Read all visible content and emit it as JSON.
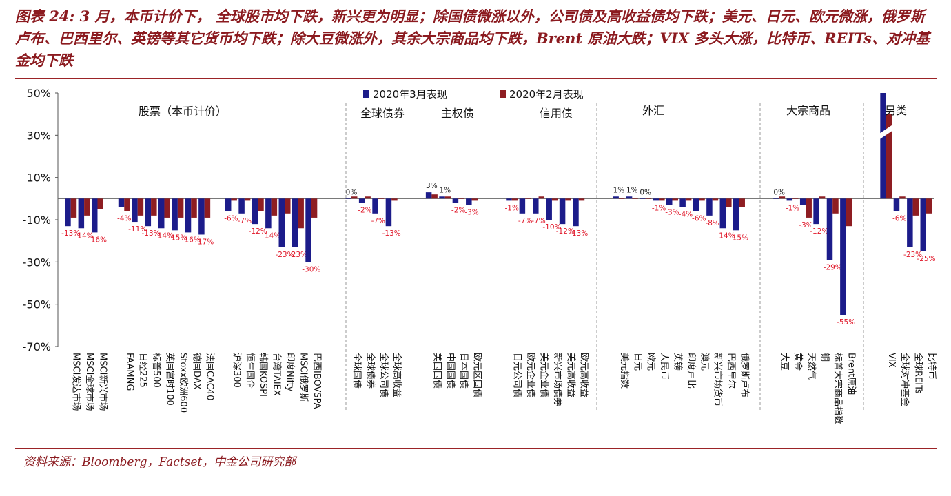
{
  "page": {
    "title": "图表 24: 3 月，本币计价下，  全球股市均下跌，新兴更为明显；除国债微涨以外，公司债及高收益债均下跌；美元、日元、欧元微涨，俄罗斯卢布、巴西里尔、英镑等其它货币均下跌；除大豆微涨外，其余大宗商品均下跌，Brent 原油大跌；VIX 多头大涨，比特币、REITs、对冲基金均下跌",
    "source": "资料来源：Bloomberg，Factset，中金公司研究部"
  },
  "colors": {
    "march": "#1c1c8a",
    "feb": "#8e1d22",
    "label": "#e0182a",
    "title": "#8b1a1f"
  },
  "chart_data": {
    "type": "bar",
    "ylim": [
      -70,
      50
    ],
    "yticks": [
      50,
      30,
      10,
      -10,
      -30,
      -50,
      -70
    ],
    "ytick_labels": [
      "50%",
      "30%",
      "10%",
      "-10%",
      "-30%",
      "-50%",
      "-70%"
    ],
    "legend": [
      "2020年3月表现",
      "2020年2月表现"
    ],
    "series": [
      {
        "name": "2020年3月表现",
        "values": [
          -13,
          -14,
          -16,
          -4,
          -11,
          -13,
          -14,
          -15,
          -16,
          -17,
          -6,
          -7,
          -12,
          -14,
          -23,
          -23,
          -30,
          0,
          -2,
          -7,
          -13,
          3,
          1,
          -2,
          -3,
          -1,
          -7,
          -7,
          -10,
          -12,
          -13,
          1,
          1,
          0,
          -1,
          -3,
          -4,
          -6,
          -8,
          -14,
          -15,
          0,
          -1,
          -3,
          -12,
          -29,
          -55,
          50,
          -6,
          -23,
          -25
        ]
      },
      {
        "name": "2020年2月表现",
        "values": [
          -9,
          -8,
          -5,
          -6,
          -8,
          -8,
          -9,
          -9,
          -9,
          -9,
          -1,
          -1,
          -6,
          -8,
          -7,
          -14,
          -9,
          1,
          1,
          0,
          -1,
          2,
          1,
          0,
          -1,
          -1,
          0,
          1,
          -1,
          -1,
          -1,
          0,
          0,
          0,
          -1,
          -1,
          -1,
          -1,
          -1,
          -4,
          -4,
          1,
          0,
          -9,
          1,
          -7,
          -13,
          40,
          1,
          -8,
          -7
        ]
      }
    ],
    "groups": [
      {
        "name": "股票（本币计价）",
        "items": [
          {
            "label": "MSCI发达市场",
            "value_label": "-13%"
          },
          {
            "label": "MSCI全球市场",
            "value_label": "-14%"
          },
          {
            "label": "MSCI新兴市场",
            "value_label": "-16%"
          },
          {
            "label": "FAAMNG",
            "value_label": "-4%"
          },
          {
            "label": "日经225",
            "value_label": "-11%"
          },
          {
            "label": "标普500",
            "value_label": "-13%"
          },
          {
            "label": "英国富时100",
            "value_label": "-14%"
          },
          {
            "label": "Stoxx欧洲600",
            "value_label": "-15%"
          },
          {
            "label": "德国DAX",
            "value_label": "-16%"
          },
          {
            "label": "法国CAC40",
            "value_label": "-17%"
          },
          {
            "label": "沪深300",
            "value_label": "-6%"
          },
          {
            "label": "恒生国企",
            "value_label": "-7%"
          },
          {
            "label": "韩国KOSPI",
            "value_label": "-12%"
          },
          {
            "label": "台湾TAIEX",
            "value_label": "-14%"
          },
          {
            "label": "印度Nifty",
            "value_label": "-23%"
          },
          {
            "label": "MSCI俄罗斯",
            "value_label": "-23%"
          },
          {
            "label": "巴西IBOVSPA",
            "value_label": "-30%"
          }
        ]
      },
      {
        "name": "全球债券",
        "items": [
          {
            "label": "全球国债",
            "value_label": "0%"
          },
          {
            "label": "全球债券",
            "value_label": "-2%"
          },
          {
            "label": "全球公司债",
            "value_label": "-7%"
          },
          {
            "label": "全球高收益",
            "value_label": "-13%"
          }
        ]
      },
      {
        "name": "主权债",
        "items": [
          {
            "label": "美国国债",
            "value_label": "3%"
          },
          {
            "label": "中国国债",
            "value_label": "1%"
          },
          {
            "label": "日本国债",
            "value_label": "-2%"
          },
          {
            "label": "欧元区国债",
            "value_label": "-3%"
          }
        ]
      },
      {
        "name": "信用债",
        "items": [
          {
            "label": "日元公司债",
            "value_label": "-1%"
          },
          {
            "label": "欧元企业债",
            "value_label": "-7%"
          },
          {
            "label": "美元企业债",
            "value_label": "-7%"
          },
          {
            "label": "新兴市场债券",
            "value_label": "-10%"
          },
          {
            "label": "美元高收益",
            "value_label": "-12%"
          },
          {
            "label": "欧元高收益",
            "value_label": "-13%"
          }
        ]
      },
      {
        "name": "外汇",
        "items": [
          {
            "label": "美元指数",
            "value_label": "1%"
          },
          {
            "label": "日元",
            "value_label": "1%"
          },
          {
            "label": "欧元",
            "value_label": "0%"
          },
          {
            "label": "人民币",
            "value_label": "-1%"
          },
          {
            "label": "英镑",
            "value_label": "-3%"
          },
          {
            "label": "印度卢比",
            "value_label": "-4%"
          },
          {
            "label": "澳元",
            "value_label": "-6%"
          },
          {
            "label": "新兴市场货币",
            "value_label": "-8%"
          },
          {
            "label": "巴西里尔",
            "value_label": "-14%"
          },
          {
            "label": "俄罗斯卢布",
            "value_label": "-15%"
          }
        ]
      },
      {
        "name": "大宗商品",
        "items": [
          {
            "label": "大豆",
            "value_label": "0%"
          },
          {
            "label": "黄金",
            "value_label": "-1%"
          },
          {
            "label": "天然气",
            "value_label": "-3%"
          },
          {
            "label": "铜",
            "value_label": "-12%"
          },
          {
            "label": "标普大宗商品指数",
            "value_label": "-29%"
          },
          {
            "label": "Brent原油",
            "value_label": "-55%"
          }
        ]
      },
      {
        "name": "另类",
        "items": [
          {
            "label": "VIX",
            "value_label": ""
          },
          {
            "label": "全球对冲基金",
            "value_label": "-6%"
          },
          {
            "label": "全球REITs",
            "value_label": "-23%"
          },
          {
            "label": "比特币",
            "value_label": "-25%"
          }
        ]
      }
    ]
  }
}
